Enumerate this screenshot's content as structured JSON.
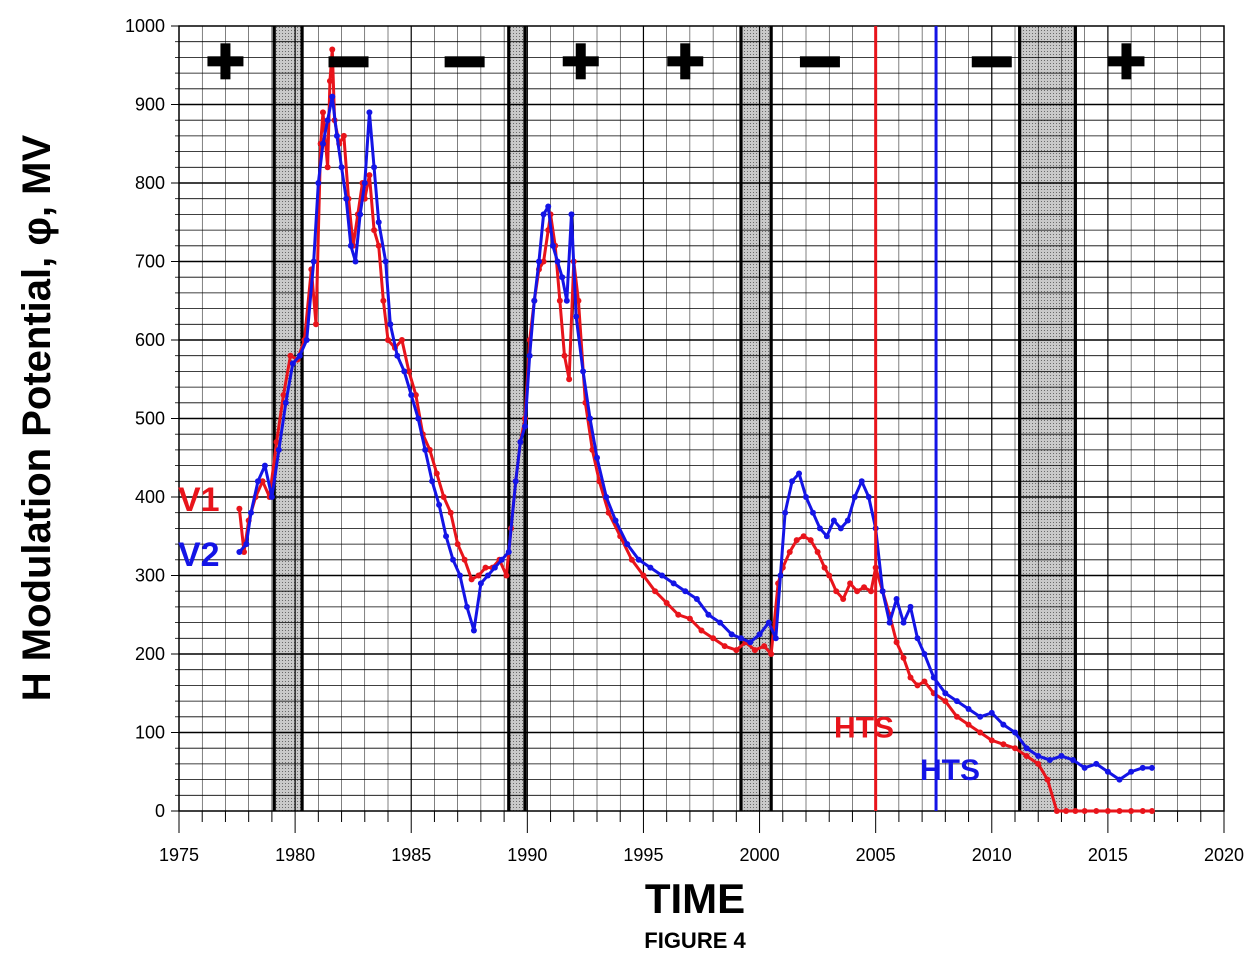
{
  "chart_data": {
    "type": "line",
    "caption": "FIGURE 4",
    "xlabel": "TIME",
    "ylabel": "H Modulation Potential, φ, MV",
    "xlim": [
      1975,
      2020
    ],
    "ylim": [
      0,
      1000
    ],
    "x_ticks": [
      1975,
      1980,
      1985,
      1990,
      1995,
      2000,
      2005,
      2010,
      2015,
      2020
    ],
    "y_ticks": [
      0,
      100,
      200,
      300,
      400,
      500,
      600,
      700,
      800,
      900,
      1000
    ],
    "grid": true,
    "shaded_periods": [
      [
        1979.1,
        1980.3
      ],
      [
        1989.2,
        1989.9
      ],
      [
        1999.2,
        2000.5
      ],
      [
        2011.2,
        2013.6
      ]
    ],
    "period_lines": [
      1979.1,
      1980.3,
      1989.2,
      1989.9,
      1999.2,
      2000.5,
      2011.2,
      2013.6
    ],
    "polarity_markers": [
      {
        "x": 1977.0,
        "sign": "+"
      },
      {
        "x": 1982.3,
        "sign": "–"
      },
      {
        "x": 1987.3,
        "sign": "–"
      },
      {
        "x": 1992.3,
        "sign": "+"
      },
      {
        "x": 1996.8,
        "sign": "+"
      },
      {
        "x": 2002.6,
        "sign": "–"
      },
      {
        "x": 2010.0,
        "sign": "–"
      },
      {
        "x": 2015.8,
        "sign": "+"
      }
    ],
    "series": [
      {
        "name": "V1",
        "color": "#e8141b",
        "x": [
          1977.6,
          1977.8,
          1978.0,
          1978.3,
          1978.6,
          1978.9,
          1979.2,
          1979.5,
          1979.8,
          1980.1,
          1980.4,
          1980.7,
          1980.9,
          1981.1,
          1981.2,
          1981.4,
          1981.5,
          1981.6,
          1981.7,
          1981.9,
          1982.1,
          1982.3,
          1982.5,
          1982.7,
          1982.9,
          1983.0,
          1983.2,
          1983.4,
          1983.6,
          1983.8,
          1984.0,
          1984.3,
          1984.6,
          1984.9,
          1985.2,
          1985.5,
          1985.8,
          1986.1,
          1986.4,
          1986.7,
          1987.0,
          1987.3,
          1987.6,
          1987.9,
          1988.2,
          1988.5,
          1988.8,
          1989.1,
          1989.3,
          1989.5,
          1989.7,
          1989.9,
          1990.1,
          1990.3,
          1990.5,
          1990.7,
          1990.9,
          1991.0,
          1991.2,
          1991.4,
          1991.6,
          1991.8,
          1992.0,
          1992.2,
          1992.5,
          1992.8,
          1993.1,
          1993.5,
          1994.0,
          1994.5,
          1995.0,
          1995.5,
          1996.0,
          1996.5,
          1997.0,
          1997.5,
          1998.0,
          1998.5,
          1999.0,
          1999.4,
          1999.8,
          2000.2,
          2000.5,
          2000.8,
          2001.0,
          2001.3,
          2001.6,
          2001.9,
          2002.2,
          2002.5,
          2002.8,
          2003.0,
          2003.3,
          2003.6,
          2003.9,
          2004.2,
          2004.5,
          2004.8,
          2005.0,
          2005.3,
          2005.6,
          2005.9,
          2006.2,
          2006.5,
          2006.8,
          2007.1,
          2007.5,
          2008.0,
          2008.5,
          2009.0,
          2009.5,
          2010.0,
          2010.5,
          2011.0,
          2011.5,
          2012.0,
          2012.4,
          2012.8,
          2013.2,
          2013.6,
          2014.0,
          2014.5,
          2015.0,
          2015.5,
          2016.0,
          2016.5,
          2016.9
        ],
        "y": [
          385,
          330,
          370,
          400,
          420,
          400,
          470,
          530,
          580,
          575,
          600,
          690,
          620,
          850,
          890,
          820,
          930,
          970,
          880,
          850,
          860,
          780,
          720,
          760,
          800,
          780,
          810,
          740,
          720,
          650,
          600,
          590,
          600,
          560,
          530,
          480,
          460,
          430,
          400,
          380,
          340,
          320,
          295,
          300,
          310,
          310,
          320,
          300,
          360,
          420,
          470,
          500,
          600,
          650,
          690,
          700,
          740,
          760,
          720,
          650,
          580,
          550,
          700,
          650,
          520,
          460,
          420,
          380,
          350,
          320,
          300,
          280,
          265,
          250,
          245,
          230,
          220,
          210,
          205,
          215,
          205,
          210,
          200,
          290,
          310,
          330,
          345,
          350,
          345,
          330,
          310,
          300,
          280,
          270,
          290,
          280,
          285,
          280,
          310,
          280,
          250,
          215,
          195,
          170,
          160,
          165,
          150,
          140,
          120,
          110,
          100,
          90,
          85,
          80,
          70,
          60,
          40,
          0,
          0,
          0,
          0,
          0,
          0,
          0,
          0,
          0,
          0
        ],
        "label": "V1"
      },
      {
        "name": "V2",
        "color": "#1414e6",
        "x": [
          1977.6,
          1977.9,
          1978.1,
          1978.4,
          1978.7,
          1979.0,
          1979.3,
          1979.6,
          1979.9,
          1980.2,
          1980.5,
          1980.8,
          1981.0,
          1981.2,
          1981.4,
          1981.6,
          1981.8,
          1982.0,
          1982.2,
          1982.4,
          1982.6,
          1982.8,
          1983.0,
          1983.2,
          1983.4,
          1983.6,
          1983.9,
          1984.1,
          1984.4,
          1984.7,
          1985.0,
          1985.3,
          1985.6,
          1985.9,
          1986.2,
          1986.5,
          1986.8,
          1987.1,
          1987.4,
          1987.7,
          1988.0,
          1988.3,
          1988.6,
          1988.9,
          1989.2,
          1989.5,
          1989.7,
          1989.9,
          1990.1,
          1990.3,
          1990.5,
          1990.7,
          1990.9,
          1991.1,
          1991.3,
          1991.5,
          1991.7,
          1991.9,
          1992.1,
          1992.4,
          1992.7,
          1993.0,
          1993.4,
          1993.8,
          1994.3,
          1994.8,
          1995.3,
          1995.8,
          1996.3,
          1996.8,
          1997.3,
          1997.8,
          1998.3,
          1998.8,
          1999.2,
          1999.6,
          2000.0,
          2000.4,
          2000.7,
          2000.9,
          2001.1,
          2001.4,
          2001.7,
          2002.0,
          2002.3,
          2002.6,
          2002.9,
          2003.2,
          2003.5,
          2003.8,
          2004.1,
          2004.4,
          2004.7,
          2005.0,
          2005.3,
          2005.6,
          2005.9,
          2006.2,
          2006.5,
          2006.8,
          2007.1,
          2007.5,
          2008.0,
          2008.5,
          2009.0,
          2009.5,
          2010.0,
          2010.5,
          2011.0,
          2011.5,
          2012.0,
          2012.5,
          2013.0,
          2013.5,
          2014.0,
          2014.5,
          2015.0,
          2015.5,
          2016.0,
          2016.5,
          2016.9
        ],
        "y": [
          330,
          340,
          380,
          420,
          440,
          400,
          460,
          520,
          570,
          580,
          600,
          700,
          800,
          850,
          880,
          910,
          860,
          820,
          780,
          720,
          700,
          760,
          800,
          890,
          820,
          750,
          700,
          620,
          580,
          560,
          530,
          500,
          460,
          420,
          390,
          350,
          320,
          300,
          260,
          230,
          290,
          300,
          310,
          320,
          330,
          420,
          470,
          490,
          580,
          650,
          700,
          760,
          770,
          720,
          700,
          680,
          650,
          760,
          630,
          560,
          500,
          450,
          400,
          370,
          340,
          320,
          310,
          300,
          290,
          280,
          270,
          250,
          240,
          225,
          220,
          215,
          225,
          240,
          220,
          300,
          380,
          420,
          430,
          400,
          380,
          360,
          350,
          370,
          360,
          370,
          400,
          420,
          400,
          360,
          280,
          240,
          270,
          240,
          260,
          220,
          200,
          170,
          150,
          140,
          130,
          120,
          125,
          110,
          100,
          80,
          70,
          65,
          70,
          65,
          55,
          60,
          50,
          40,
          50,
          55,
          55
        ],
        "label": "V2"
      }
    ],
    "reference_lines": [
      {
        "x": 2005.0,
        "label": "HTS",
        "color": "#e8141b"
      },
      {
        "x": 2007.6,
        "label": "HTS",
        "color": "#1414e6"
      }
    ]
  }
}
